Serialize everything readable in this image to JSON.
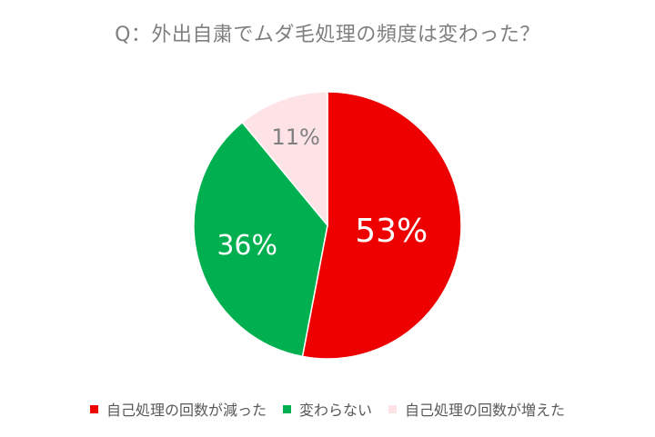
{
  "chart_data": {
    "type": "pie",
    "title": "Q：外出自粛でムダ毛処理の頻度は変わった？",
    "slices": [
      {
        "label": "自己処理の回数が減った",
        "value": 53,
        "display": "53%",
        "color": "#ee0000",
        "label_color": "#ffffff"
      },
      {
        "label": "変わらない",
        "value": 36,
        "display": "36%",
        "color": "#00b050",
        "label_color": "#ffffff"
      },
      {
        "label": "自己処理の回数が増えた",
        "value": 11,
        "display": "11%",
        "color": "#fde3e6",
        "label_color": "#7f7f7f"
      }
    ],
    "legend_position": "bottom",
    "start_angle": "top",
    "direction": "clockwise"
  }
}
